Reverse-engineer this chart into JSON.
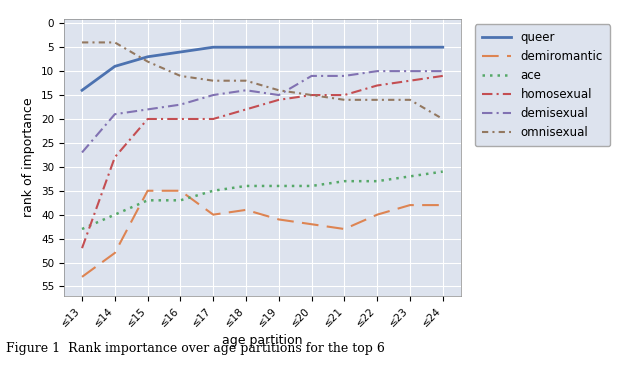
{
  "x_labels": [
    "≤13",
    "≤14",
    "≤15",
    "≤16",
    "≤17",
    "≤18",
    "≤19",
    "≤20",
    "≤21",
    "≤22",
    "≤23",
    "≤24"
  ],
  "series_order": [
    "queer",
    "demiromantic",
    "ace",
    "homosexual",
    "demisexual",
    "omnisexual"
  ],
  "series": {
    "queer": {
      "values": [
        14,
        9,
        7,
        6,
        5,
        5,
        5,
        5,
        5,
        5,
        5,
        5
      ],
      "color": "#4c72b0",
      "linestyle": "-",
      "linewidth": 2.0,
      "label": "queer"
    },
    "demiromantic": {
      "values": [
        53,
        48,
        35,
        35,
        40,
        39,
        41,
        42,
        43,
        40,
        38,
        38
      ],
      "color": "#dd8452",
      "linestyle": "--",
      "linewidth": 1.5,
      "label": "demiromantic"
    },
    "ace": {
      "values": [
        43,
        40,
        37,
        37,
        35,
        34,
        34,
        34,
        33,
        33,
        32,
        31
      ],
      "color": "#55a868",
      "linestyle": ":",
      "linewidth": 1.8,
      "label": "ace"
    },
    "homosexual": {
      "values": [
        47,
        28,
        20,
        20,
        20,
        18,
        16,
        15,
        15,
        13,
        12,
        11
      ],
      "color": "#c44e52",
      "linestyle": "-.",
      "linewidth": 1.5,
      "label": "homosexual"
    },
    "demisexual": {
      "values": [
        27,
        19,
        18,
        17,
        15,
        14,
        15,
        11,
        11,
        10,
        10,
        10
      ],
      "color": "#8172b2",
      "linestyle": "-.",
      "linewidth": 1.5,
      "label": "demisexual"
    },
    "omnisexual": {
      "values": [
        4,
        4,
        8,
        11,
        12,
        12,
        14,
        15,
        16,
        16,
        16,
        20
      ],
      "color": "#937860",
      "linestyle": ":",
      "linewidth": 1.5,
      "label": "omnisexual"
    }
  },
  "ylabel": "rank of importance",
  "xlabel": "age partition",
  "ylim": [
    57,
    -1
  ],
  "yticks": [
    0,
    5,
    10,
    15,
    20,
    25,
    30,
    35,
    40,
    45,
    50,
    55
  ],
  "bg_color": "#dde3ee",
  "fig_color": "#ffffff",
  "grid_color": "#ffffff",
  "legend_bg": "#dde3ee",
  "caption": "Figure 1  Rank importance over age partitions for the top 6"
}
